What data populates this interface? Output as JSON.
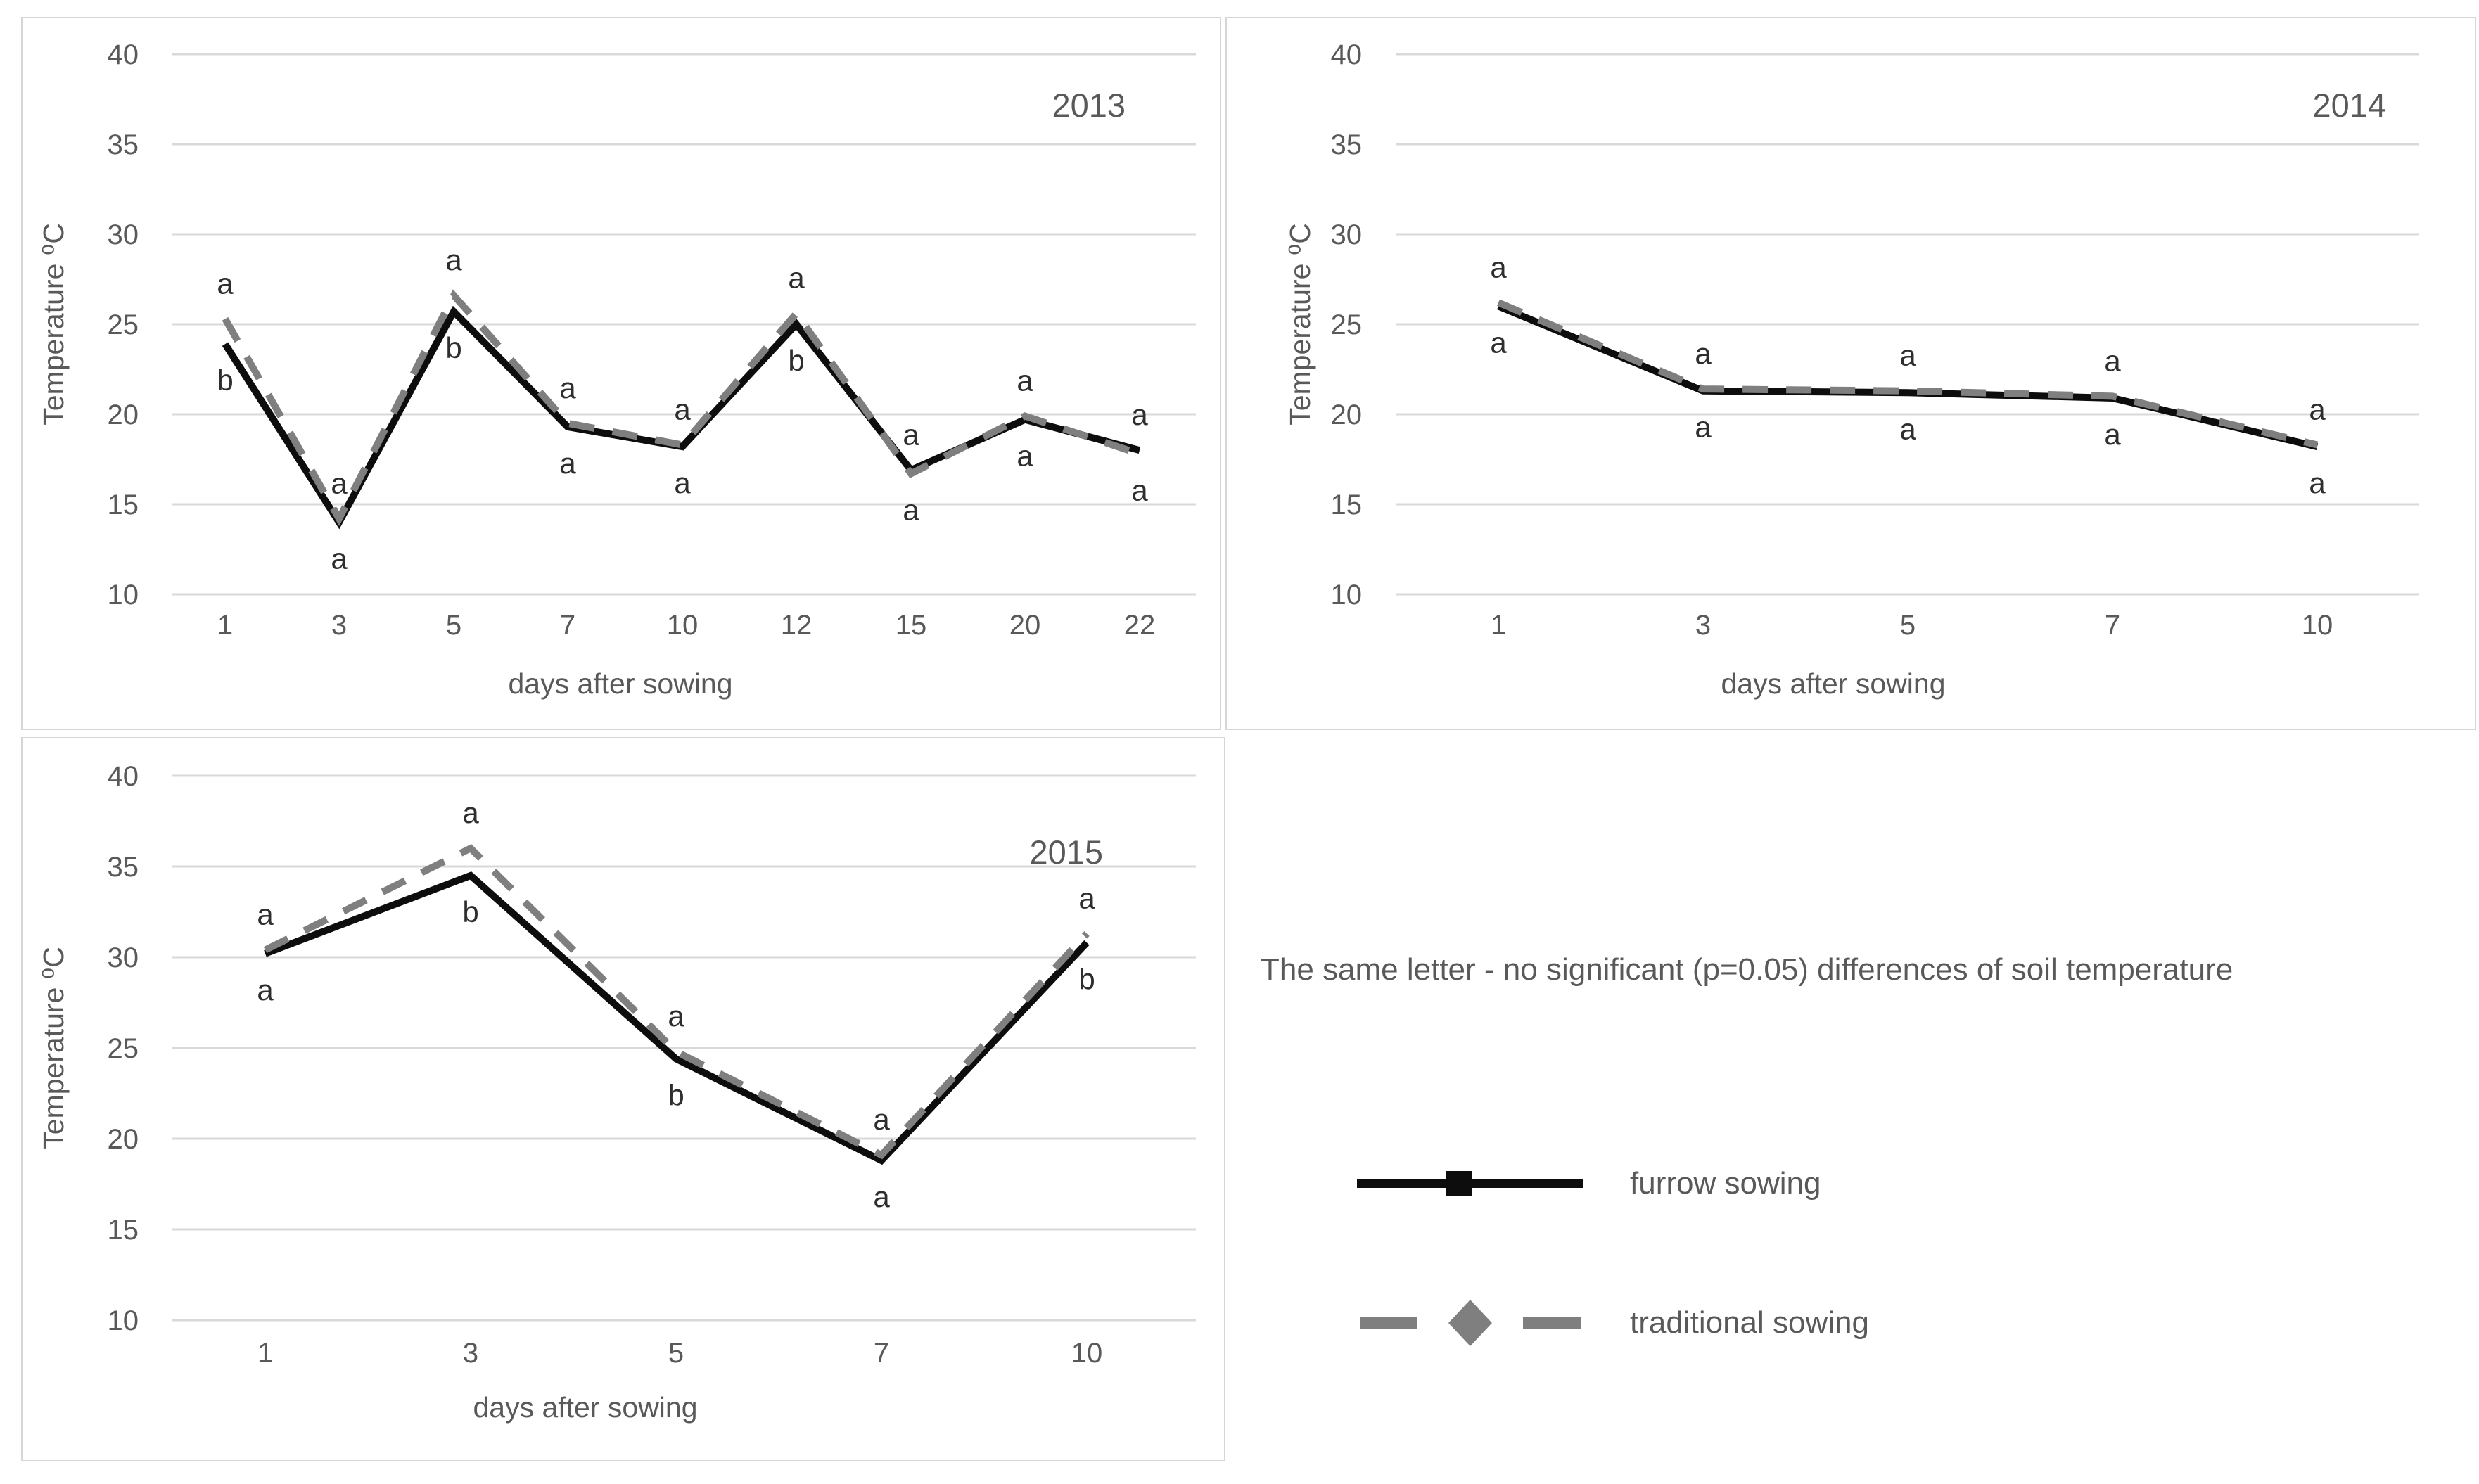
{
  "note": {
    "text": "The same letter - no significant (p=0.05) differences of soil temperature"
  },
  "legend": {
    "items": [
      {
        "label": "furrow sowing",
        "marker": "solid-black-line-with-square"
      },
      {
        "label": "traditional sowing",
        "marker": "gray-dashed-line-with-diamond"
      }
    ]
  },
  "colors": {
    "furrow_line": "#0d0d0d",
    "traditional_line": "#7f7f7f",
    "gridline": "#d9d9d9",
    "axis_text": "#595959",
    "letter_text": "#2e2e2e",
    "panel_border": "#d6d6d6"
  },
  "chart_data": [
    {
      "type": "line",
      "title": "2013",
      "xlabel": "days after sowing",
      "ylabel": "Temperature ⁰C",
      "categories": [
        "1",
        "3",
        "5",
        "7",
        "10",
        "12",
        "15",
        "20",
        "22"
      ],
      "ylim": [
        10,
        40
      ],
      "yticks": [
        40,
        35,
        30,
        25,
        20,
        15,
        10
      ],
      "grid": true,
      "legend_position": "none",
      "series": [
        {
          "name": "furrow sowing",
          "values": [
            23.9,
            14.0,
            25.7,
            19.3,
            18.2,
            25.0,
            16.9,
            19.7,
            18.0
          ]
        },
        {
          "name": "traditional sowing",
          "values": [
            25.3,
            14.2,
            26.6,
            19.5,
            18.3,
            25.6,
            16.7,
            19.9,
            17.8
          ]
        }
      ],
      "sig_letters_above": [
        "a",
        "a",
        "a",
        "a",
        "a",
        "a",
        "a",
        "a",
        "a"
      ],
      "sig_letters_below": [
        "b",
        "a",
        "b",
        "a",
        "a",
        "b",
        "a",
        "a",
        "a"
      ]
    },
    {
      "type": "line",
      "title": "2014",
      "xlabel": "days after sowing",
      "ylabel": "Temperature ⁰C",
      "categories": [
        "1",
        "3",
        "5",
        "7",
        "10"
      ],
      "ylim": [
        10,
        40
      ],
      "yticks": [
        40,
        35,
        30,
        25,
        20,
        15,
        10
      ],
      "grid": true,
      "legend_position": "none",
      "series": [
        {
          "name": "furrow sowing",
          "values": [
            26.0,
            21.3,
            21.2,
            20.9,
            18.2
          ]
        },
        {
          "name": "traditional sowing",
          "values": [
            26.2,
            21.4,
            21.3,
            21.0,
            18.3
          ]
        }
      ],
      "sig_letters_above": [
        "a",
        "a",
        "a",
        "a",
        "a"
      ],
      "sig_letters_below": [
        "a",
        "a",
        "a",
        "a",
        "a"
      ]
    },
    {
      "type": "line",
      "title": "2015",
      "xlabel": "days after sowing",
      "ylabel": "Temperature ⁰C",
      "categories": [
        "1",
        "3",
        "5",
        "7",
        "10"
      ],
      "ylim": [
        10,
        40
      ],
      "yticks": [
        40,
        35,
        30,
        25,
        20,
        15,
        10
      ],
      "grid": true,
      "legend_position": "none",
      "series": [
        {
          "name": "furrow sowing",
          "values": [
            30.2,
            34.5,
            24.4,
            18.8,
            30.8
          ]
        },
        {
          "name": "traditional sowing",
          "values": [
            30.4,
            36.0,
            24.8,
            19.1,
            31.3
          ]
        }
      ],
      "sig_letters_above": [
        "a",
        "a",
        "a",
        "a",
        "a"
      ],
      "sig_letters_below": [
        "a",
        "b",
        "b",
        "a",
        "b"
      ]
    }
  ]
}
